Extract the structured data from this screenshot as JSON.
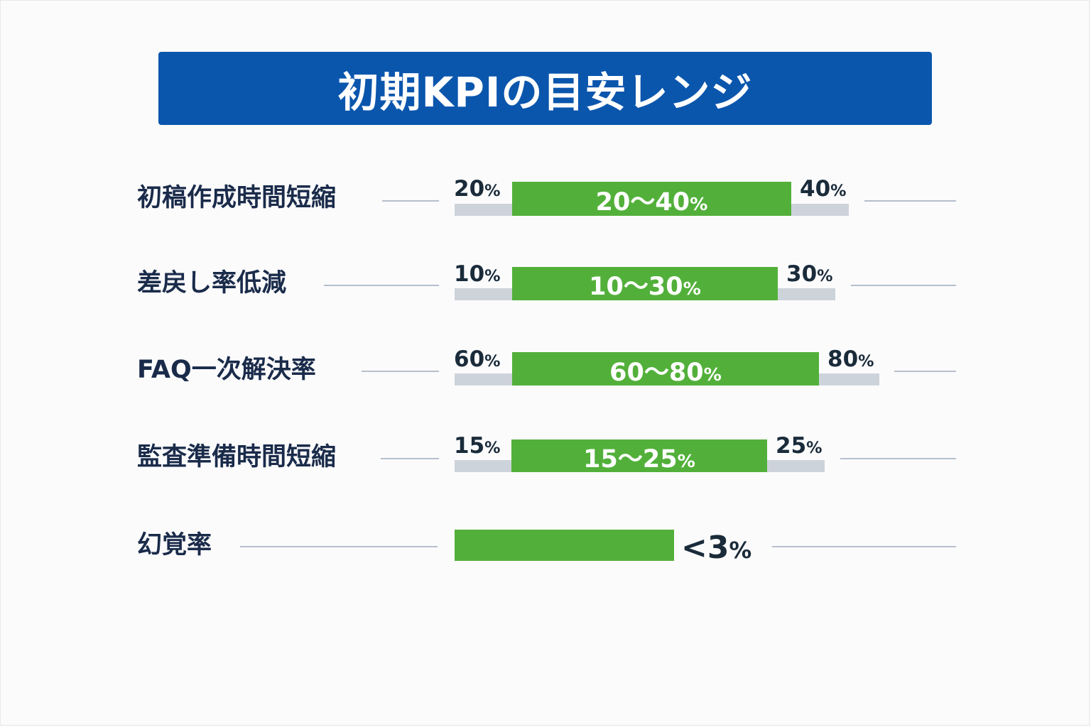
{
  "title": "初期KPIの目安レンジ",
  "colors": {
    "banner": "#0b56ad",
    "bar_fill": "#52b03a",
    "track": "#cdd3da",
    "connector_line": "#b6bfcb",
    "label_text": "#1a2b4a"
  },
  "chart_data": {
    "type": "bar",
    "orientation": "horizontal-range",
    "unit": "%",
    "categories": [
      "初稿作成時間短縮",
      "差戻し率低減",
      "FAQ一次解決率",
      "監査準備時間短縮",
      "幻覚率"
    ],
    "ranges": [
      {
        "label": "初稿作成時間短縮",
        "low": 20,
        "high": 40,
        "low_text": "20%",
        "high_text": "40%",
        "range_text": "20〜40%"
      },
      {
        "label": "差戻し率低減",
        "low": 10,
        "high": 30,
        "low_text": "10%",
        "high_text": "30%",
        "range_text": "10〜30%"
      },
      {
        "label": "FAQ一次解決率",
        "low": 60,
        "high": 80,
        "low_text": "60%",
        "high_text": "80%",
        "range_text": "60〜80%"
      },
      {
        "label": "監査準備時間短縮",
        "low": 15,
        "high": 25,
        "low_text": "15%",
        "high_text": "25%",
        "range_text": "15〜25%"
      },
      {
        "label": "幻覚率",
        "low": null,
        "high": 3,
        "max_text": "<3%"
      }
    ],
    "grid": false,
    "legend": "none"
  }
}
